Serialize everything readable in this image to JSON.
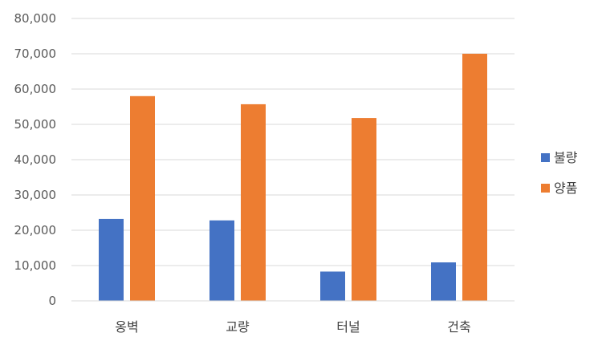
{
  "chart_data": {
    "type": "bar",
    "categories": [
      "옹벽",
      "교량",
      "터널",
      "건축"
    ],
    "series": [
      {
        "name": "불량",
        "color": "#4472C4",
        "values": [
          23200,
          22800,
          8300,
          10900
        ]
      },
      {
        "name": "양품",
        "color": "#ED7D31",
        "values": [
          58000,
          55700,
          51800,
          70000
        ]
      }
    ],
    "ylim": [
      0,
      80000
    ],
    "yticks": [
      "0",
      "10,000",
      "20,000",
      "30,000",
      "40,000",
      "50,000",
      "60,000",
      "70,000",
      "80,000"
    ],
    "grid": true,
    "gridColor": "#D9D9D9",
    "legend": "right"
  }
}
